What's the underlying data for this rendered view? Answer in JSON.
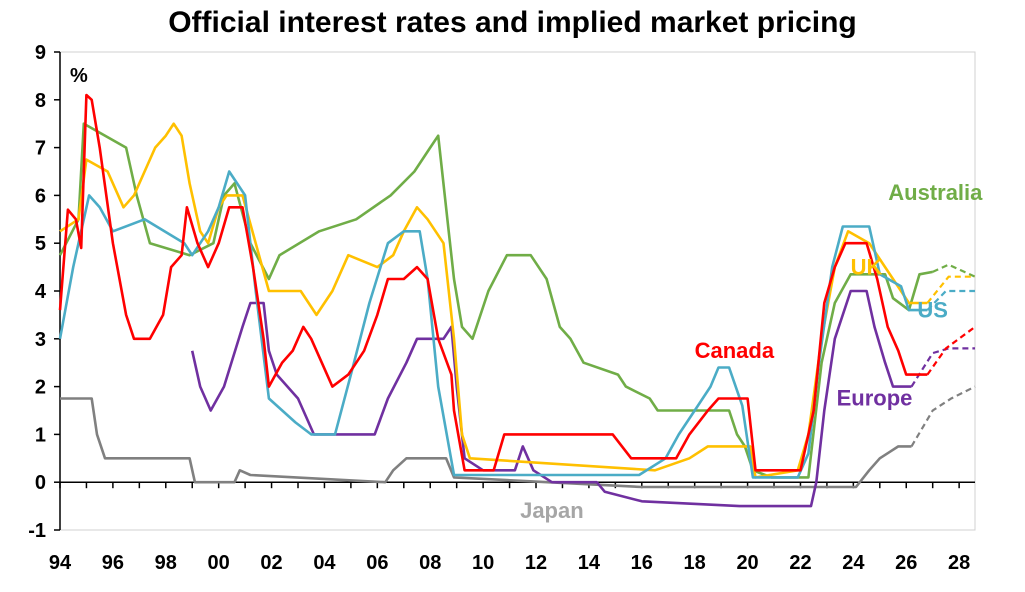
{
  "chart_data": {
    "type": "line",
    "title": "Official interest rates and implied market pricing",
    "ylabel": "%",
    "xlabel": "",
    "xlim": [
      1994,
      2028.6
    ],
    "ylim": [
      -1,
      9
    ],
    "x_tick_labels": [
      "94",
      "96",
      "98",
      "00",
      "02",
      "04",
      "06",
      "08",
      "10",
      "12",
      "14",
      "16",
      "18",
      "20",
      "22",
      "24",
      "26",
      "28"
    ],
    "y_tick_labels": [
      "-1",
      "0",
      "1",
      "2",
      "3",
      "4",
      "5",
      "6",
      "7",
      "8",
      "9"
    ],
    "grid": false,
    "series": [
      {
        "name": "Australia",
        "color": "#70ad47",
        "values": [
          [
            1994,
            4.75
          ],
          [
            1994.7,
            5.5
          ],
          [
            1994.9,
            7.5
          ],
          [
            1996.5,
            7.0
          ],
          [
            1996.9,
            6.0
          ],
          [
            1997.4,
            5.0
          ],
          [
            1998.9,
            4.75
          ],
          [
            1999.8,
            5.0
          ],
          [
            2000.2,
            6.0
          ],
          [
            2000.6,
            6.25
          ],
          [
            2001.2,
            5.0
          ],
          [
            2001.9,
            4.25
          ],
          [
            2002.3,
            4.75
          ],
          [
            2003.8,
            5.25
          ],
          [
            2005.2,
            5.5
          ],
          [
            2006.5,
            6.0
          ],
          [
            2007.4,
            6.5
          ],
          [
            2008.0,
            7.0
          ],
          [
            2008.3,
            7.25
          ],
          [
            2008.7,
            5.25
          ],
          [
            2008.9,
            4.25
          ],
          [
            2009.2,
            3.25
          ],
          [
            2009.6,
            3.0
          ],
          [
            2010.2,
            4.0
          ],
          [
            2010.9,
            4.75
          ],
          [
            2011.8,
            4.75
          ],
          [
            2012.4,
            4.25
          ],
          [
            2012.9,
            3.25
          ],
          [
            2013.3,
            3.0
          ],
          [
            2013.8,
            2.5
          ],
          [
            2015.1,
            2.25
          ],
          [
            2015.4,
            2.0
          ],
          [
            2016.3,
            1.75
          ],
          [
            2016.6,
            1.5
          ],
          [
            2019.3,
            1.5
          ],
          [
            2019.6,
            1.0
          ],
          [
            2019.9,
            0.75
          ],
          [
            2020.2,
            0.25
          ],
          [
            2020.9,
            0.1
          ],
          [
            2022.3,
            0.1
          ],
          [
            2022.8,
            2.5
          ],
          [
            2023.3,
            3.75
          ],
          [
            2023.9,
            4.35
          ],
          [
            2025.2,
            4.35
          ],
          [
            2025.5,
            3.85
          ],
          [
            2026.1,
            3.6
          ],
          [
            2026.5,
            4.35
          ],
          [
            2027.0,
            4.4
          ]
        ],
        "forecast": [
          [
            2027.0,
            4.4
          ],
          [
            2027.6,
            4.55
          ],
          [
            2028.6,
            4.3
          ]
        ]
      },
      {
        "name": "UK",
        "color": "#ffc000",
        "values": [
          [
            1994,
            5.25
          ],
          [
            1994.7,
            5.5
          ],
          [
            1995.0,
            6.75
          ],
          [
            1995.8,
            6.5
          ],
          [
            1996.4,
            5.75
          ],
          [
            1996.8,
            6.0
          ],
          [
            1997.2,
            6.5
          ],
          [
            1997.6,
            7.0
          ],
          [
            1998.0,
            7.25
          ],
          [
            1998.3,
            7.5
          ],
          [
            1998.6,
            7.25
          ],
          [
            1998.9,
            6.25
          ],
          [
            1999.3,
            5.25
          ],
          [
            1999.6,
            5.0
          ],
          [
            2000.0,
            5.75
          ],
          [
            2000.3,
            6.0
          ],
          [
            2000.9,
            6.0
          ],
          [
            2001.4,
            5.0
          ],
          [
            2001.9,
            4.0
          ],
          [
            2003.1,
            4.0
          ],
          [
            2003.7,
            3.5
          ],
          [
            2004.3,
            4.0
          ],
          [
            2004.9,
            4.75
          ],
          [
            2006.0,
            4.5
          ],
          [
            2006.6,
            4.75
          ],
          [
            2007.0,
            5.25
          ],
          [
            2007.5,
            5.75
          ],
          [
            2007.9,
            5.5
          ],
          [
            2008.5,
            5.0
          ],
          [
            2008.9,
            3.0
          ],
          [
            2009.2,
            1.0
          ],
          [
            2009.5,
            0.5
          ],
          [
            2016.5,
            0.25
          ],
          [
            2017.8,
            0.5
          ],
          [
            2018.5,
            0.75
          ],
          [
            2020.1,
            0.75
          ],
          [
            2020.3,
            0.1
          ],
          [
            2021.9,
            0.25
          ],
          [
            2022.3,
            1.0
          ],
          [
            2022.8,
            3.0
          ],
          [
            2023.3,
            4.5
          ],
          [
            2023.8,
            5.25
          ],
          [
            2024.6,
            5.0
          ],
          [
            2025.2,
            4.5
          ],
          [
            2025.8,
            4.0
          ],
          [
            2026.1,
            3.75
          ],
          [
            2026.8,
            3.75
          ]
        ],
        "forecast": [
          [
            2026.8,
            3.75
          ],
          [
            2027.6,
            4.3
          ],
          [
            2028.6,
            4.3
          ]
        ]
      },
      {
        "name": "US",
        "color": "#4bacc6",
        "values": [
          [
            1994,
            3.0
          ],
          [
            1994.5,
            4.5
          ],
          [
            1994.9,
            5.5
          ],
          [
            1995.1,
            6.0
          ],
          [
            1995.5,
            5.75
          ],
          [
            1996.0,
            5.25
          ],
          [
            1997.2,
            5.5
          ],
          [
            1998.7,
            5.0
          ],
          [
            1999.0,
            4.75
          ],
          [
            1999.6,
            5.25
          ],
          [
            2000.0,
            5.75
          ],
          [
            2000.4,
            6.5
          ],
          [
            2001.0,
            6.0
          ],
          [
            2001.4,
            4.0
          ],
          [
            2001.9,
            1.75
          ],
          [
            2002.9,
            1.25
          ],
          [
            2003.5,
            1.0
          ],
          [
            2004.4,
            1.0
          ],
          [
            2005.0,
            2.25
          ],
          [
            2005.7,
            3.75
          ],
          [
            2006.4,
            5.0
          ],
          [
            2007.0,
            5.25
          ],
          [
            2007.6,
            5.25
          ],
          [
            2007.9,
            4.25
          ],
          [
            2008.3,
            2.0
          ],
          [
            2008.9,
            0.15
          ],
          [
            2015.9,
            0.15
          ],
          [
            2016.9,
            0.5
          ],
          [
            2017.4,
            1.0
          ],
          [
            2018.0,
            1.5
          ],
          [
            2018.6,
            2.0
          ],
          [
            2018.9,
            2.4
          ],
          [
            2019.3,
            2.4
          ],
          [
            2019.8,
            1.6
          ],
          [
            2020.2,
            0.1
          ],
          [
            2021.9,
            0.1
          ],
          [
            2022.3,
            0.6
          ],
          [
            2022.7,
            2.5
          ],
          [
            2023.2,
            4.5
          ],
          [
            2023.6,
            5.35
          ],
          [
            2024.6,
            5.35
          ],
          [
            2024.9,
            4.6
          ],
          [
            2025.0,
            4.35
          ],
          [
            2025.8,
            4.1
          ],
          [
            2026.1,
            3.6
          ],
          [
            2026.8,
            3.6
          ]
        ],
        "forecast": [
          [
            2026.8,
            3.6
          ],
          [
            2027.5,
            4.0
          ],
          [
            2028.6,
            4.0
          ]
        ]
      },
      {
        "name": "Canada",
        "color": "#ff0000",
        "values": [
          [
            1994,
            3.6
          ],
          [
            1994.3,
            5.7
          ],
          [
            1994.6,
            5.5
          ],
          [
            1994.8,
            4.9
          ],
          [
            1995.0,
            8.1
          ],
          [
            1995.2,
            8.0
          ],
          [
            1995.5,
            7.0
          ],
          [
            1996.0,
            5.0
          ],
          [
            1996.5,
            3.5
          ],
          [
            1996.8,
            3.0
          ],
          [
            1997.4,
            3.0
          ],
          [
            1997.9,
            3.5
          ],
          [
            1998.2,
            4.5
          ],
          [
            1998.6,
            4.75
          ],
          [
            1998.8,
            5.75
          ],
          [
            1999.2,
            5.0
          ],
          [
            1999.6,
            4.5
          ],
          [
            2000.0,
            5.0
          ],
          [
            2000.4,
            5.75
          ],
          [
            2000.9,
            5.75
          ],
          [
            2001.3,
            4.5
          ],
          [
            2001.7,
            3.0
          ],
          [
            2001.9,
            2.0
          ],
          [
            2002.4,
            2.5
          ],
          [
            2002.8,
            2.75
          ],
          [
            2003.2,
            3.25
          ],
          [
            2003.5,
            3.0
          ],
          [
            2003.9,
            2.5
          ],
          [
            2004.3,
            2.0
          ],
          [
            2004.9,
            2.25
          ],
          [
            2005.5,
            2.75
          ],
          [
            2006.0,
            3.5
          ],
          [
            2006.4,
            4.25
          ],
          [
            2007.0,
            4.25
          ],
          [
            2007.5,
            4.5
          ],
          [
            2007.9,
            4.25
          ],
          [
            2008.3,
            3.0
          ],
          [
            2008.8,
            2.25
          ],
          [
            2008.9,
            1.5
          ],
          [
            2009.3,
            0.25
          ],
          [
            2010.4,
            0.25
          ],
          [
            2010.8,
            1.0
          ],
          [
            2014.9,
            1.0
          ],
          [
            2015.6,
            0.5
          ],
          [
            2017.3,
            0.5
          ],
          [
            2017.8,
            1.0
          ],
          [
            2018.5,
            1.5
          ],
          [
            2018.9,
            1.75
          ],
          [
            2020.0,
            1.75
          ],
          [
            2020.3,
            0.25
          ],
          [
            2022.0,
            0.25
          ],
          [
            2022.5,
            1.5
          ],
          [
            2022.9,
            3.75
          ],
          [
            2023.3,
            4.5
          ],
          [
            2023.7,
            5.0
          ],
          [
            2024.5,
            5.0
          ],
          [
            2024.9,
            4.25
          ],
          [
            2025.3,
            3.25
          ],
          [
            2025.7,
            2.75
          ],
          [
            2026.0,
            2.25
          ],
          [
            2026.8,
            2.25
          ]
        ],
        "forecast": [
          [
            2026.8,
            2.25
          ],
          [
            2027.5,
            2.8
          ],
          [
            2028.6,
            3.25
          ]
        ]
      },
      {
        "name": "Europe",
        "color": "#7030a0",
        "values": [
          [
            1999.0,
            2.75
          ],
          [
            1999.3,
            2.0
          ],
          [
            1999.7,
            1.5
          ],
          [
            2000.2,
            2.0
          ],
          [
            2000.9,
            3.25
          ],
          [
            2001.2,
            3.75
          ],
          [
            2001.7,
            3.75
          ],
          [
            2001.9,
            2.75
          ],
          [
            2002.2,
            2.25
          ],
          [
            2003.0,
            1.75
          ],
          [
            2003.6,
            1.0
          ],
          [
            2005.9,
            1.0
          ],
          [
            2006.4,
            1.75
          ],
          [
            2007.1,
            2.5
          ],
          [
            2007.5,
            3.0
          ],
          [
            2008.5,
            3.0
          ],
          [
            2008.8,
            3.25
          ],
          [
            2009.0,
            2.0
          ],
          [
            2009.3,
            0.5
          ],
          [
            2010.0,
            0.25
          ],
          [
            2011.2,
            0.25
          ],
          [
            2011.5,
            0.75
          ],
          [
            2011.9,
            0.25
          ],
          [
            2012.6,
            0.0
          ],
          [
            2014.3,
            0.0
          ],
          [
            2014.6,
            -0.2
          ],
          [
            2016.0,
            -0.4
          ],
          [
            2019.7,
            -0.5
          ],
          [
            2022.4,
            -0.5
          ],
          [
            2022.6,
            0.0
          ],
          [
            2022.9,
            1.5
          ],
          [
            2023.3,
            3.0
          ],
          [
            2023.9,
            4.0
          ],
          [
            2024.5,
            4.0
          ],
          [
            2024.8,
            3.25
          ],
          [
            2025.2,
            2.5
          ],
          [
            2025.5,
            2.0
          ],
          [
            2026.2,
            2.0
          ]
        ],
        "forecast": [
          [
            2026.2,
            2.0
          ],
          [
            2027.0,
            2.7
          ],
          [
            2027.6,
            2.8
          ],
          [
            2028.6,
            2.8
          ]
        ]
      },
      {
        "name": "Japan",
        "color": "#808080",
        "values": [
          [
            1994,
            1.75
          ],
          [
            1995.2,
            1.75
          ],
          [
            1995.4,
            1.0
          ],
          [
            1995.7,
            0.5
          ],
          [
            1998.9,
            0.5
          ],
          [
            1999.1,
            0.0
          ],
          [
            2000.6,
            0.0
          ],
          [
            2000.8,
            0.25
          ],
          [
            2001.2,
            0.15
          ],
          [
            2006.3,
            0.0
          ],
          [
            2006.6,
            0.25
          ],
          [
            2007.1,
            0.5
          ],
          [
            2008.6,
            0.5
          ],
          [
            2008.9,
            0.1
          ],
          [
            2016.0,
            -0.1
          ],
          [
            2024.1,
            -0.1
          ],
          [
            2024.6,
            0.25
          ],
          [
            2025.0,
            0.5
          ],
          [
            2025.7,
            0.75
          ],
          [
            2026.2,
            0.75
          ]
        ],
        "forecast": [
          [
            2026.2,
            0.75
          ],
          [
            2027.0,
            1.5
          ],
          [
            2027.7,
            1.75
          ],
          [
            2028.6,
            2.0
          ]
        ]
      }
    ],
    "annotations": [
      {
        "text": "Australia",
        "x": 2027.1,
        "y": 5.9,
        "color": "#70ad47"
      },
      {
        "text": "UK",
        "x": 2024.5,
        "y": 4.35,
        "color": "#ffc000"
      },
      {
        "text": "US",
        "x": 2027.0,
        "y": 3.45,
        "color": "#4bacc6"
      },
      {
        "text": "Canada",
        "x": 2019.5,
        "y": 2.6,
        "color": "#ff0000"
      },
      {
        "text": "Europe",
        "x": 2024.8,
        "y": 1.6,
        "color": "#7030a0"
      },
      {
        "text": "Japan",
        "x": 2012.6,
        "y": -0.75,
        "color": "#a6a6a6"
      }
    ]
  }
}
